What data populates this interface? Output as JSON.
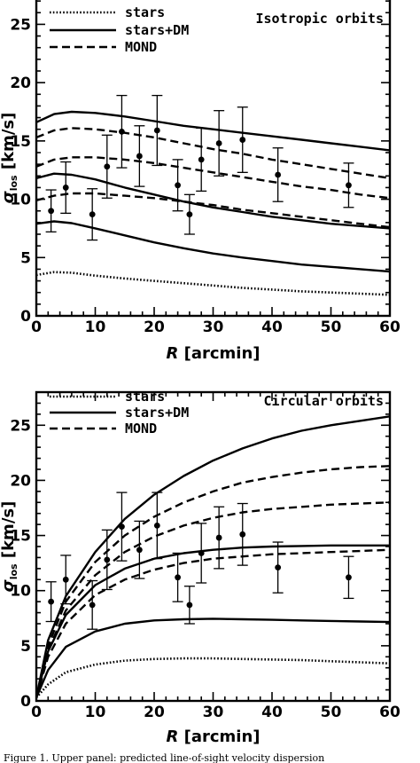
{
  "chart_data": [
    {
      "type": "line",
      "panel_label": "Isotropic orbits",
      "xlabel_italic": "R",
      "xlabel_rest": "[arcmin]",
      "ylabel_main": "σ",
      "ylabel_sub": "los",
      "ylabel_rest": "[km/s]",
      "xlim": [
        0,
        60
      ],
      "ylim": [
        0,
        28
      ],
      "xticks": [
        0,
        10,
        20,
        30,
        40,
        50,
        60
      ],
      "yticks": [
        0,
        5,
        10,
        15,
        20,
        25
      ],
      "legend": [
        {
          "label": "stars",
          "style": "dotted"
        },
        {
          "label": "stars+DM",
          "style": "solid"
        },
        {
          "label": "MOND",
          "style": "dashed"
        }
      ],
      "series": [
        {
          "style": "dotted",
          "x": [
            0,
            3,
            6,
            10,
            15,
            20,
            25,
            30,
            35,
            40,
            45,
            50,
            55,
            60
          ],
          "y": [
            3.5,
            3.75,
            3.7,
            3.45,
            3.2,
            3.0,
            2.8,
            2.6,
            2.4,
            2.25,
            2.1,
            2.0,
            1.9,
            1.8
          ]
        },
        {
          "style": "solid",
          "x": [
            0,
            3,
            6,
            10,
            15,
            20,
            25,
            30,
            35,
            40,
            45,
            50,
            55,
            60
          ],
          "y": [
            7.9,
            8.1,
            7.95,
            7.5,
            6.9,
            6.3,
            5.8,
            5.35,
            5.0,
            4.7,
            4.4,
            4.2,
            4.0,
            3.8
          ]
        },
        {
          "style": "solid",
          "x": [
            0,
            3,
            6,
            10,
            15,
            20,
            25,
            30,
            35,
            40,
            45,
            50,
            55,
            60
          ],
          "y": [
            11.8,
            12.2,
            12.1,
            11.7,
            11.0,
            10.4,
            9.8,
            9.3,
            8.9,
            8.5,
            8.2,
            7.9,
            7.7,
            7.5
          ]
        },
        {
          "style": "solid",
          "x": [
            0,
            3,
            6,
            10,
            15,
            20,
            25,
            30,
            35,
            40,
            45,
            50,
            55,
            60
          ],
          "y": [
            16.6,
            17.3,
            17.5,
            17.4,
            17.1,
            16.7,
            16.3,
            16.0,
            15.7,
            15.4,
            15.1,
            14.8,
            14.5,
            14.2
          ]
        },
        {
          "style": "dashed",
          "x": [
            0,
            3,
            6,
            10,
            15,
            20,
            25,
            30,
            35,
            40,
            45,
            50,
            55,
            60
          ],
          "y": [
            9.9,
            10.3,
            10.5,
            10.5,
            10.3,
            10.1,
            9.8,
            9.5,
            9.1,
            8.8,
            8.5,
            8.2,
            7.9,
            7.6
          ]
        },
        {
          "style": "dashed",
          "x": [
            0,
            3,
            6,
            10,
            15,
            20,
            25,
            30,
            35,
            40,
            45,
            50,
            55,
            60
          ],
          "y": [
            12.8,
            13.4,
            13.6,
            13.6,
            13.4,
            13.1,
            12.7,
            12.3,
            11.9,
            11.5,
            11.1,
            10.8,
            10.4,
            10.1
          ]
        },
        {
          "style": "dashed",
          "x": [
            0,
            3,
            6,
            10,
            15,
            20,
            25,
            30,
            35,
            40,
            45,
            50,
            55,
            60
          ],
          "y": [
            15.3,
            15.9,
            16.1,
            16.0,
            15.7,
            15.3,
            14.8,
            14.3,
            13.9,
            13.4,
            13.0,
            12.6,
            12.2,
            11.8
          ]
        }
      ],
      "points": [
        {
          "x": 2.5,
          "y": 9.0,
          "err": 1.8
        },
        {
          "x": 5.0,
          "y": 11.0,
          "err": 2.2
        },
        {
          "x": 9.5,
          "y": 8.7,
          "err": 2.2
        },
        {
          "x": 12.0,
          "y": 12.8,
          "err": 2.7
        },
        {
          "x": 14.5,
          "y": 15.8,
          "err": 3.1
        },
        {
          "x": 17.5,
          "y": 13.7,
          "err": 2.6
        },
        {
          "x": 20.5,
          "y": 15.9,
          "err": 3.0
        },
        {
          "x": 24.0,
          "y": 11.2,
          "err": 2.2
        },
        {
          "x": 26.0,
          "y": 8.7,
          "err": 1.7
        },
        {
          "x": 28.0,
          "y": 13.4,
          "err": 2.7
        },
        {
          "x": 31.0,
          "y": 14.8,
          "err": 2.8
        },
        {
          "x": 35.0,
          "y": 15.1,
          "err": 2.8
        },
        {
          "x": 41.0,
          "y": 12.1,
          "err": 2.3
        },
        {
          "x": 53.0,
          "y": 11.2,
          "err": 1.9
        }
      ]
    },
    {
      "type": "line",
      "panel_label": "Circular orbits",
      "xlabel_italic": "R",
      "xlabel_rest": "[arcmin]",
      "ylabel_main": "σ",
      "ylabel_sub": "los",
      "ylabel_rest": "[km/s]",
      "xlim": [
        0,
        60
      ],
      "ylim": [
        0,
        28
      ],
      "xticks": [
        0,
        10,
        20,
        30,
        40,
        50,
        60
      ],
      "yticks": [
        0,
        5,
        10,
        15,
        20,
        25
      ],
      "legend": [
        {
          "label": "stars",
          "style": "dotted"
        },
        {
          "label": "stars+DM",
          "style": "solid"
        },
        {
          "label": "MOND",
          "style": "dashed"
        }
      ],
      "series": [
        {
          "style": "dotted",
          "x": [
            0,
            2,
            5,
            10,
            15,
            20,
            25,
            30,
            35,
            40,
            45,
            50,
            55,
            60
          ],
          "y": [
            0.3,
            1.5,
            2.6,
            3.3,
            3.65,
            3.8,
            3.85,
            3.85,
            3.8,
            3.75,
            3.7,
            3.6,
            3.5,
            3.4
          ]
        },
        {
          "style": "solid",
          "x": [
            0,
            2,
            5,
            10,
            15,
            20,
            25,
            30,
            35,
            40,
            45,
            50,
            55,
            60
          ],
          "y": [
            0.3,
            2.8,
            4.9,
            6.3,
            7.0,
            7.3,
            7.4,
            7.45,
            7.4,
            7.35,
            7.3,
            7.25,
            7.2,
            7.15
          ]
        },
        {
          "style": "solid",
          "x": [
            0,
            2,
            5,
            10,
            15,
            20,
            25,
            30,
            35,
            40,
            45,
            50,
            55,
            60
          ],
          "y": [
            0.3,
            4.5,
            7.8,
            10.5,
            12.0,
            12.9,
            13.4,
            13.7,
            13.9,
            14.0,
            14.05,
            14.1,
            14.1,
            14.1
          ]
        },
        {
          "style": "solid",
          "x": [
            0,
            2,
            5,
            10,
            15,
            20,
            25,
            30,
            35,
            40,
            45,
            50,
            55,
            60
          ],
          "y": [
            0.3,
            5.5,
            9.5,
            13.5,
            16.5,
            18.7,
            20.4,
            21.8,
            22.9,
            23.8,
            24.5,
            25.0,
            25.4,
            25.8
          ]
        },
        {
          "style": "dashed",
          "x": [
            0,
            2,
            5,
            10,
            15,
            20,
            25,
            30,
            35,
            40,
            45,
            50,
            55,
            60
          ],
          "y": [
            0.3,
            4.0,
            7.0,
            9.6,
            11.0,
            11.9,
            12.5,
            12.9,
            13.1,
            13.3,
            13.4,
            13.5,
            13.6,
            13.7
          ]
        },
        {
          "style": "dashed",
          "x": [
            0,
            2,
            5,
            10,
            15,
            20,
            25,
            30,
            35,
            40,
            45,
            50,
            55,
            60
          ],
          "y": [
            0.3,
            4.6,
            8.2,
            11.4,
            13.5,
            14.9,
            15.9,
            16.6,
            17.1,
            17.4,
            17.6,
            17.8,
            17.9,
            18.0
          ]
        },
        {
          "style": "dashed",
          "x": [
            0,
            2,
            5,
            10,
            15,
            20,
            25,
            30,
            35,
            40,
            45,
            50,
            55,
            60
          ],
          "y": [
            0.3,
            5.0,
            9.0,
            12.6,
            15.0,
            16.7,
            18.0,
            19.0,
            19.8,
            20.3,
            20.7,
            21.0,
            21.2,
            21.3
          ]
        }
      ],
      "points": [
        {
          "x": 2.5,
          "y": 9.0,
          "err": 1.8
        },
        {
          "x": 5.0,
          "y": 11.0,
          "err": 2.2
        },
        {
          "x": 9.5,
          "y": 8.7,
          "err": 2.2
        },
        {
          "x": 12.0,
          "y": 12.8,
          "err": 2.7
        },
        {
          "x": 14.5,
          "y": 15.8,
          "err": 3.1
        },
        {
          "x": 17.5,
          "y": 13.7,
          "err": 2.6
        },
        {
          "x": 20.5,
          "y": 15.9,
          "err": 3.0
        },
        {
          "x": 24.0,
          "y": 11.2,
          "err": 2.2
        },
        {
          "x": 26.0,
          "y": 8.7,
          "err": 1.7
        },
        {
          "x": 28.0,
          "y": 13.4,
          "err": 2.7
        },
        {
          "x": 31.0,
          "y": 14.8,
          "err": 2.8
        },
        {
          "x": 35.0,
          "y": 15.1,
          "err": 2.8
        },
        {
          "x": 41.0,
          "y": 12.1,
          "err": 2.3
        },
        {
          "x": 53.0,
          "y": 11.2,
          "err": 1.9
        }
      ]
    }
  ],
  "caption": "Figure 1. Upper panel: predicted line-of-sight velocity dispersion"
}
